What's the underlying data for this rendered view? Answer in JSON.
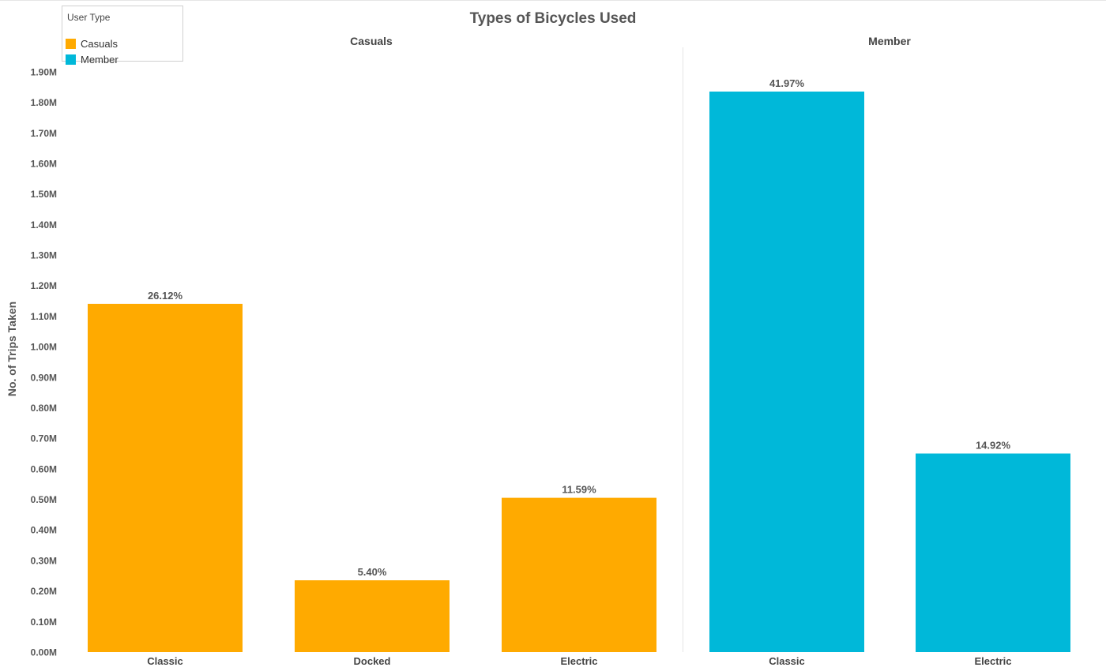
{
  "chart_data": {
    "type": "bar",
    "title": "Types of Bicycles Used",
    "ylabel": "No. of Trips Taken",
    "xlabel": "",
    "ylim": [
      0,
      1.96
    ],
    "y_ticks": [
      {
        "value": 0.0,
        "label": "0.00M"
      },
      {
        "value": 0.1,
        "label": "0.10M"
      },
      {
        "value": 0.2,
        "label": "0.20M"
      },
      {
        "value": 0.3,
        "label": "0.30M"
      },
      {
        "value": 0.4,
        "label": "0.40M"
      },
      {
        "value": 0.5,
        "label": "0.50M"
      },
      {
        "value": 0.6,
        "label": "0.60M"
      },
      {
        "value": 0.7,
        "label": "0.70M"
      },
      {
        "value": 0.8,
        "label": "0.80M"
      },
      {
        "value": 0.9,
        "label": "0.90M"
      },
      {
        "value": 1.0,
        "label": "1.00M"
      },
      {
        "value": 1.1,
        "label": "1.10M"
      },
      {
        "value": 1.2,
        "label": "1.20M"
      },
      {
        "value": 1.3,
        "label": "1.30M"
      },
      {
        "value": 1.4,
        "label": "1.40M"
      },
      {
        "value": 1.5,
        "label": "1.50M"
      },
      {
        "value": 1.6,
        "label": "1.60M"
      },
      {
        "value": 1.7,
        "label": "1.70M"
      },
      {
        "value": 1.8,
        "label": "1.80M"
      },
      {
        "value": 1.9,
        "label": "1.90M"
      }
    ],
    "grid": false,
    "legend": {
      "title": "User Type",
      "placement": "top-left",
      "items": [
        {
          "name": "Casuals",
          "color": "#FFAA00"
        },
        {
          "name": "Member",
          "color": "#00B8D9"
        }
      ]
    },
    "panels": [
      {
        "name": "Casuals",
        "color": "#FFAA00",
        "categories": [
          "Classic",
          "Docked",
          "Electric"
        ],
        "values": [
          1.14,
          0.235,
          0.505
        ],
        "labels": [
          "26.12%",
          "5.40%",
          "11.59%"
        ]
      },
      {
        "name": "Member",
        "color": "#00B8D9",
        "categories": [
          "Classic",
          "Electric"
        ],
        "values": [
          1.835,
          0.65
        ],
        "labels": [
          "41.97%",
          "14.92%"
        ]
      }
    ]
  }
}
